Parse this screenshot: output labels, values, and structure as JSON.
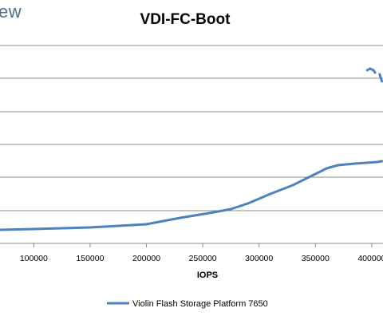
{
  "brand": {
    "text": "ew"
  },
  "chart_data": {
    "type": "line",
    "title": "VDI-FC-Boot",
    "xlabel": "IOPS",
    "ylabel": "",
    "xlim": [
      70000,
      410000
    ],
    "x_ticks": [
      "100000",
      "150000",
      "200000",
      "250000",
      "300000",
      "350000",
      "400000"
    ],
    "x_tick_values": [
      100000,
      150000,
      200000,
      250000,
      300000,
      350000,
      400000
    ],
    "grid": true,
    "legend_position": "bottom",
    "series": [
      {
        "name": "Violin Flash Storage Platform 7650",
        "color": "#4f81bd",
        "points": [
          [
            70000,
            288
          ],
          [
            100000,
            287
          ],
          [
            150000,
            285
          ],
          [
            200000,
            281
          ],
          [
            230000,
            273
          ],
          [
            260000,
            266
          ],
          [
            275000,
            262
          ],
          [
            290000,
            255
          ],
          [
            310000,
            243
          ],
          [
            330000,
            232
          ],
          [
            350000,
            218
          ],
          [
            360000,
            211
          ],
          [
            370000,
            207
          ],
          [
            385000,
            205
          ],
          [
            405000,
            203
          ],
          [
            409000,
            202
          ]
        ],
        "hook_points": [
          [
            396000,
            88
          ],
          [
            398500,
            86
          ],
          [
            400000,
            87
          ],
          [
            401500,
            88
          ],
          [
            403000,
            91
          ]
        ],
        "tail_points": [
          [
            407000,
            93
          ],
          [
            409000,
            102
          ]
        ]
      }
    ]
  }
}
